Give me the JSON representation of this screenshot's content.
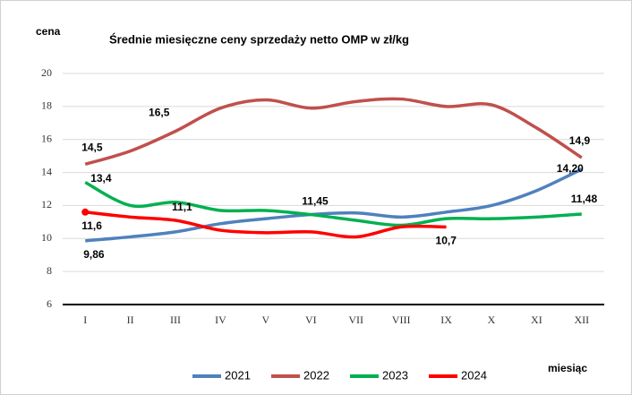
{
  "chart_data": {
    "type": "line",
    "title": "Średnie miesięczne ceny sprzedaży netto OMP w zł/kg",
    "y_label": "cena",
    "x_label": "miesiąc",
    "categories": [
      "I",
      "II",
      "III",
      "IV",
      "V",
      "VI",
      "VII",
      "VIII",
      "IX",
      "X",
      "XI",
      "XII"
    ],
    "ylim": [
      6,
      20
    ],
    "yticks": [
      6,
      8,
      10,
      12,
      14,
      16,
      18,
      20
    ],
    "grid": true,
    "legend": "bottom",
    "series": [
      {
        "name": "2021",
        "color": "#4f81bd",
        "values": [
          9.86,
          10.1,
          10.4,
          10.9,
          11.2,
          11.45,
          11.55,
          11.3,
          11.6,
          12.0,
          12.9,
          14.2
        ],
        "value_labels": [
          "9,86",
          null,
          null,
          null,
          null,
          "11,45",
          null,
          null,
          null,
          null,
          null,
          "14,20"
        ]
      },
      {
        "name": "2022",
        "color": "#c0504d",
        "values": [
          14.5,
          15.3,
          16.5,
          17.9,
          18.4,
          17.9,
          18.3,
          18.45,
          18.0,
          18.1,
          16.7,
          14.9
        ],
        "value_labels": [
          "14,5",
          null,
          "16,5",
          null,
          null,
          null,
          null,
          null,
          null,
          null,
          null,
          "14,9"
        ]
      },
      {
        "name": "2023",
        "color": "#00b050",
        "values": [
          13.4,
          12.0,
          12.2,
          11.7,
          11.7,
          11.45,
          11.1,
          10.8,
          11.2,
          11.2,
          11.3,
          11.48
        ],
        "value_labels": [
          "13,4",
          null,
          null,
          null,
          null,
          null,
          null,
          null,
          null,
          null,
          null,
          "11,48"
        ]
      },
      {
        "name": "2024",
        "color": "#ff0000",
        "values": [
          11.6,
          11.3,
          11.1,
          10.5,
          10.35,
          10.4,
          10.1,
          10.7,
          10.7,
          null,
          null,
          null
        ],
        "value_labels": [
          "11,6",
          null,
          "11,1",
          null,
          null,
          null,
          null,
          null,
          "10,7",
          null,
          null,
          null
        ]
      }
    ]
  }
}
